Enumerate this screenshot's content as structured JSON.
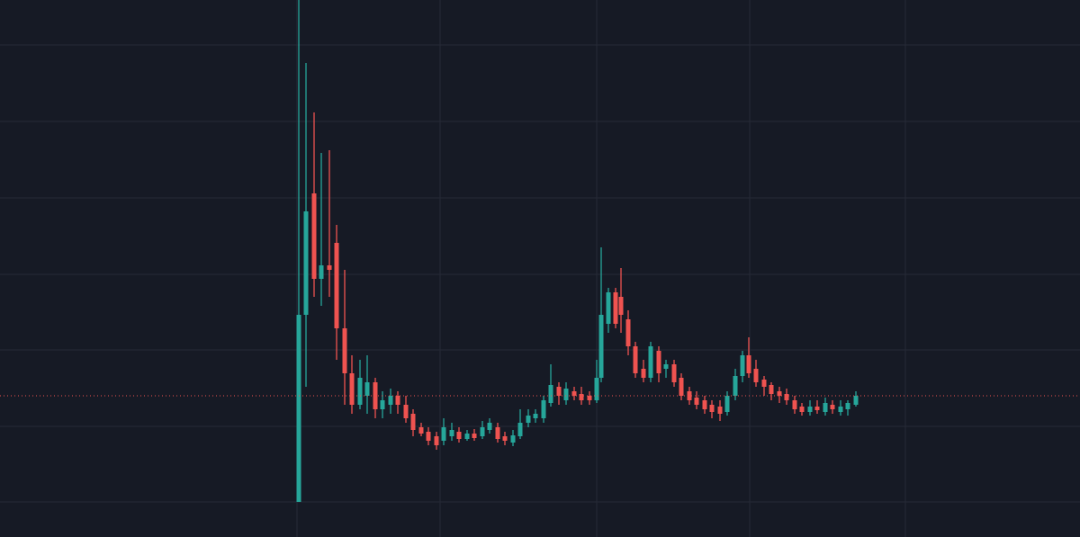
{
  "chart_data": {
    "type": "candlestick",
    "x": [
      332,
      340,
      349,
      357,
      366,
      374,
      383,
      391,
      400,
      408,
      417,
      425,
      434,
      442,
      451,
      459,
      468,
      476,
      485,
      493,
      502,
      510,
      519,
      527,
      536,
      544,
      553,
      561,
      570,
      578,
      587,
      595,
      604,
      612,
      621,
      629,
      638,
      646,
      655,
      663,
      668,
      676,
      684,
      690,
      698,
      706,
      715,
      723,
      732,
      740,
      749,
      757,
      766,
      774,
      783,
      791,
      800,
      808,
      817,
      825,
      832,
      840,
      849,
      857,
      866,
      874,
      883,
      891,
      900,
      908,
      917,
      925,
      934,
      942,
      951
    ],
    "open": [
      39,
      247,
      382,
      287,
      302,
      327,
      232,
      182,
      147,
      157,
      172,
      142,
      147,
      157,
      147,
      137,
      122,
      117,
      112,
      107,
      112,
      117,
      109,
      115,
      112,
      119,
      122,
      112,
      105,
      112,
      127,
      132,
      132,
      149,
      167,
      152,
      162,
      159,
      157,
      152,
      177,
      237,
      272,
      267,
      242,
      212,
      187,
      177,
      207,
      187,
      192,
      177,
      162,
      155,
      152,
      147,
      145,
      139,
      157,
      179,
      202,
      187,
      175,
      169,
      162,
      159,
      152,
      145,
      139,
      145,
      139,
      147,
      139,
      142,
      147
    ],
    "high": [
      597,
      527,
      472,
      427,
      430,
      347,
      297,
      202,
      197,
      202,
      177,
      162,
      165,
      162,
      157,
      142,
      127,
      122,
      117,
      132,
      127,
      122,
      119,
      120,
      129,
      132,
      127,
      117,
      119,
      142,
      142,
      142,
      157,
      192,
      172,
      172,
      167,
      167,
      162,
      197,
      322,
      277,
      277,
      299,
      252,
      217,
      197,
      217,
      212,
      197,
      197,
      182,
      167,
      162,
      157,
      152,
      152,
      162,
      187,
      207,
      222,
      197,
      179,
      172,
      167,
      165,
      157,
      149,
      152,
      152,
      155,
      152,
      152,
      152,
      162
    ],
    "low": [
      39,
      167,
      267,
      257,
      267,
      197,
      147,
      137,
      142,
      137,
      132,
      132,
      137,
      137,
      127,
      112,
      112,
      102,
      97,
      102,
      107,
      105,
      107,
      107,
      109,
      115,
      105,
      102,
      101,
      109,
      122,
      127,
      127,
      145,
      147,
      147,
      152,
      147,
      147,
      149,
      172,
      227,
      232,
      227,
      202,
      177,
      172,
      172,
      172,
      177,
      167,
      152,
      147,
      142,
      137,
      132,
      129,
      135,
      152,
      172,
      177,
      167,
      157,
      152,
      149,
      147,
      137,
      135,
      135,
      137,
      135,
      137,
      135,
      135,
      145
    ],
    "close": [
      247,
      362,
      287,
      302,
      297,
      232,
      182,
      147,
      177,
      172,
      142,
      152,
      157,
      147,
      132,
      119,
      115,
      107,
      102,
      122,
      119,
      109,
      115,
      110,
      122,
      127,
      109,
      107,
      113,
      127,
      135,
      137,
      152,
      169,
      157,
      165,
      157,
      152,
      152,
      177,
      247,
      272,
      237,
      247,
      212,
      182,
      177,
      212,
      182,
      192,
      172,
      157,
      152,
      147,
      142,
      139,
      137,
      157,
      179,
      202,
      182,
      172,
      167,
      159,
      157,
      152,
      142,
      139,
      145,
      141,
      149,
      142,
      145,
      149,
      157
    ],
    "up_color": "#26a69a",
    "down_color": "#ef5350",
    "price_line": 157,
    "price_line_color": "#ef5350",
    "xlim": [
      0,
      1200
    ],
    "xticks": [
      330,
      489,
      663,
      833,
      1006
    ],
    "ylim": [
      0,
      597
    ],
    "yticks": [
      39,
      123,
      208,
      292,
      377,
      462,
      547
    ],
    "grid": true
  }
}
